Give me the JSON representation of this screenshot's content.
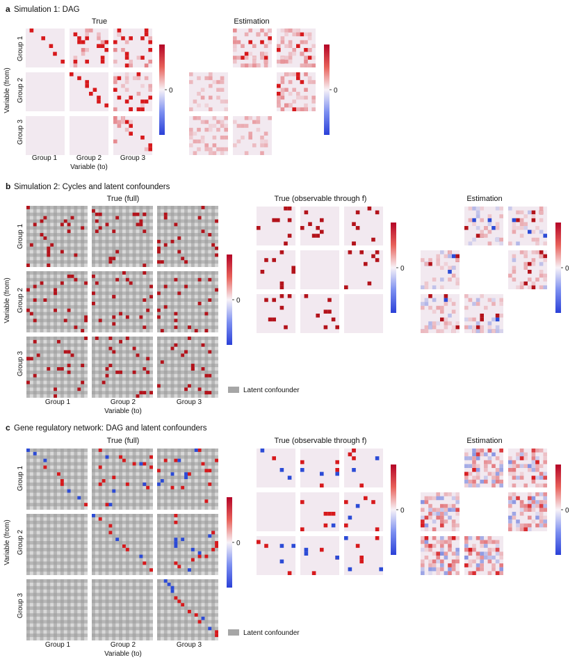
{
  "figure": {
    "panels": [
      {
        "letter": "a",
        "title": "Simulation 1: DAG",
        "true_label": "True",
        "est_label": "Estimation",
        "groups": [
          "Group 1",
          "Group 2",
          "Group 3"
        ],
        "y_label": "Variable (from)",
        "x_label": "Variable (to)",
        "colorbar_tick": "0"
      },
      {
        "letter": "b",
        "title": "Simulation 2: Cycles and latent confounders",
        "true_full_label": "True (full)",
        "true_obs_label": "True (observable through f)",
        "est_label": "Estimation",
        "groups": [
          "Group 1",
          "Group 2",
          "Group 3"
        ],
        "y_label": "Variable (from)",
        "x_label": "Variable (to)",
        "colorbar_tick": "0",
        "legend_label": "Latent confounder"
      },
      {
        "letter": "c",
        "title": "Gene regulatory network: DAG and latent confounders",
        "true_full_label": "True (full)",
        "true_obs_label": "True (observable through f)",
        "est_label": "Estimation",
        "groups": [
          "Group 1",
          "Group 2",
          "Group 3"
        ],
        "y_label": "Variable (from)",
        "x_label": "Variable (to)",
        "colorbar_tick": "0",
        "legend_label": "Latent confounder"
      }
    ],
    "colors": {
      "positive": "#d7191c",
      "strong_positive": "#b40000",
      "negative": "#2c4bd6",
      "zero": "#f2e9f0",
      "latent": "#a6a6a6",
      "latent_dark": "#8c8c8c",
      "sparse_edge": "#b3131b"
    }
  },
  "chart_data": [
    {
      "panel": "a",
      "type": "heatmap",
      "title": "Simulation 1: DAG",
      "row_groups": [
        "Group 1",
        "Group 2",
        "Group 3"
      ],
      "col_groups": [
        "Group 1",
        "Group 2",
        "Group 3"
      ],
      "matrices": [
        "True",
        "Estimation"
      ],
      "structure": "block upper-triangular adjacency (DAG)",
      "estimation_missing_blocks": [
        "Group 1→Group 1",
        "Group 2→Group 2",
        "Group 3→Group 3"
      ],
      "colorbar": {
        "ticks": [
          "0"
        ],
        "scale": "diverging blue–white–red"
      }
    },
    {
      "panel": "b",
      "type": "heatmap",
      "title": "Simulation 2: Cycles and latent confounders",
      "row_groups": [
        "Group 1",
        "Group 2",
        "Group 3"
      ],
      "col_groups": [
        "Group 1",
        "Group 2",
        "Group 3"
      ],
      "matrices": [
        "True (full)",
        "True (observable through f)",
        "Estimation"
      ],
      "estimation_missing_blocks": [
        "Group 1→Group 1",
        "Group 2→Group 2",
        "Group 3→Group 3"
      ],
      "legend": [
        "Latent confounder"
      ],
      "colorbar": {
        "ticks": [
          "0"
        ],
        "scale": "diverging blue–white–red"
      }
    },
    {
      "panel": "c",
      "type": "heatmap",
      "title": "Gene regulatory network: DAG and latent confounders",
      "row_groups": [
        "Group 1",
        "Group 2",
        "Group 3"
      ],
      "col_groups": [
        "Group 1",
        "Group 2",
        "Group 3"
      ],
      "matrices": [
        "True (full)",
        "True (observable through f)",
        "Estimation"
      ],
      "estimation_missing_blocks": [
        "Group 1→Group 1",
        "Group 2→Group 2",
        "Group 3→Group 3"
      ],
      "legend": [
        "Latent confounder"
      ],
      "colorbar": {
        "ticks": [
          "0"
        ],
        "scale": "diverging blue–white–red"
      }
    }
  ]
}
